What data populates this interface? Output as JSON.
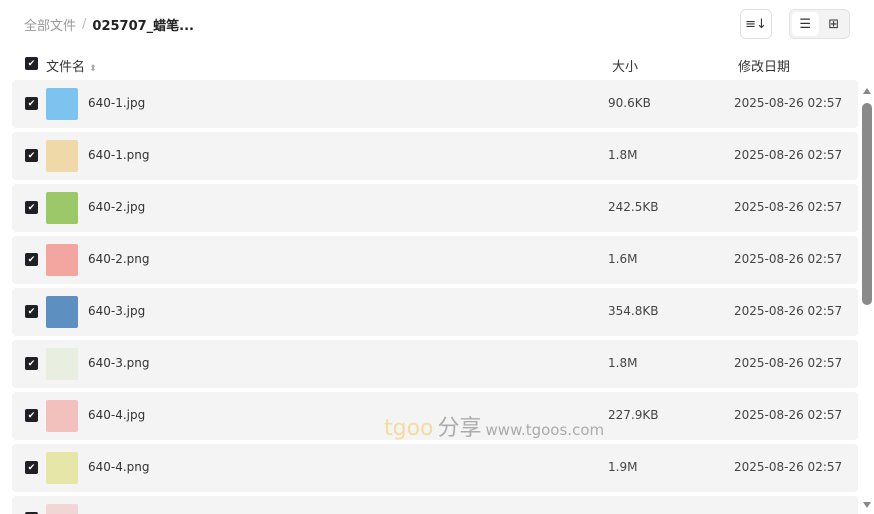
{
  "breadcrumb": {
    "root": "全部文件",
    "separator": "/",
    "current": "025707_蜡笔..."
  },
  "toolbar": {
    "sort_icon": "sort-icon",
    "list_view_icon": "list-icon",
    "grid_view_icon": "grid-icon",
    "active_view": "list"
  },
  "header": {
    "name": "文件名",
    "size": "大小",
    "date": "修改日期",
    "select_all": true
  },
  "files": [
    {
      "name": "640-1.jpg",
      "size": "90.6KB",
      "date": "2025-08-26 02:57",
      "checked": true,
      "thumb": "#7cc3ef"
    },
    {
      "name": "640-1.png",
      "size": "1.8M",
      "date": "2025-08-26 02:57",
      "checked": true,
      "thumb": "#f0d9a8"
    },
    {
      "name": "640-2.jpg",
      "size": "242.5KB",
      "date": "2025-08-26 02:57",
      "checked": true,
      "thumb": "#9cc86a"
    },
    {
      "name": "640-2.png",
      "size": "1.6M",
      "date": "2025-08-26 02:57",
      "checked": true,
      "thumb": "#f3a6a0"
    },
    {
      "name": "640-3.jpg",
      "size": "354.8KB",
      "date": "2025-08-26 02:57",
      "checked": true,
      "thumb": "#5d8fc0"
    },
    {
      "name": "640-3.png",
      "size": "1.8M",
      "date": "2025-08-26 02:57",
      "checked": true,
      "thumb": "#e8efe0"
    },
    {
      "name": "640-4.jpg",
      "size": "227.9KB",
      "date": "2025-08-26 02:57",
      "checked": true,
      "thumb": "#f2c0bd"
    },
    {
      "name": "640-4.png",
      "size": "1.9M",
      "date": "2025-08-26 02:57",
      "checked": true,
      "thumb": "#e5e6a8"
    },
    {
      "name": "",
      "size": "",
      "date": "",
      "checked": true,
      "thumb": "#f1d6d6"
    }
  ],
  "watermark": {
    "a": "tgoo",
    "b": "分享",
    "c": "www.tgoos.com"
  }
}
